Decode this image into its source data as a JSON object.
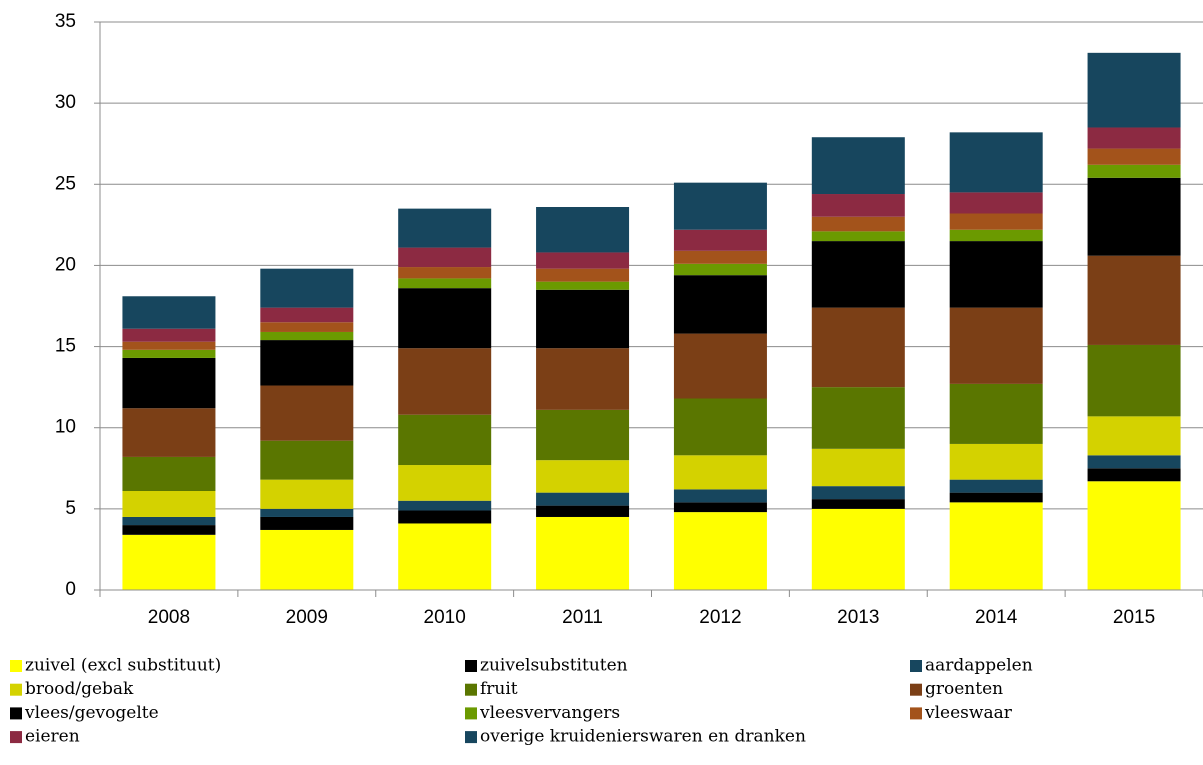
{
  "chart_data": {
    "type": "stacked-bar",
    "categories": [
      "2008",
      "2009",
      "2010",
      "2011",
      "2012",
      "2013",
      "2014",
      "2015"
    ],
    "series": [
      {
        "name": "zuivel (excl substituut)",
        "color": "#ffff00",
        "values": [
          3.4,
          3.7,
          4.1,
          4.5,
          4.8,
          5.0,
          5.4,
          6.7
        ]
      },
      {
        "name": "zuivelsubstituten",
        "color": "#000000",
        "values": [
          0.6,
          0.8,
          0.8,
          0.7,
          0.6,
          0.6,
          0.6,
          0.8
        ]
      },
      {
        "name": "aardappelen",
        "color": "#17465e",
        "values": [
          0.5,
          0.5,
          0.6,
          0.8,
          0.8,
          0.8,
          0.8,
          0.8
        ]
      },
      {
        "name": "brood/gebak",
        "color": "#d4d200",
        "values": [
          1.6,
          1.8,
          2.2,
          2.0,
          2.1,
          2.3,
          2.2,
          2.4
        ]
      },
      {
        "name": "fruit",
        "color": "#5a7600",
        "values": [
          2.1,
          2.4,
          3.1,
          3.1,
          3.5,
          3.8,
          3.7,
          4.4
        ]
      },
      {
        "name": "groenten",
        "color": "#7b3f16",
        "values": [
          3.0,
          3.4,
          4.1,
          3.8,
          4.0,
          4.9,
          4.7,
          5.5
        ]
      },
      {
        "name": "vlees/gevogelte",
        "color": "#000000",
        "values": [
          3.1,
          2.8,
          3.7,
          3.6,
          3.6,
          4.1,
          4.1,
          4.8
        ]
      },
      {
        "name": "vleesvervangers",
        "color": "#6b9a00",
        "values": [
          0.5,
          0.5,
          0.6,
          0.5,
          0.7,
          0.6,
          0.7,
          0.8
        ]
      },
      {
        "name": "vleeswaar",
        "color": "#a3531b",
        "values": [
          0.5,
          0.6,
          0.7,
          0.8,
          0.8,
          0.9,
          1.0,
          1.0
        ]
      },
      {
        "name": "eieren",
        "color": "#8c2a42",
        "values": [
          0.8,
          0.9,
          1.2,
          1.0,
          1.3,
          1.4,
          1.3,
          1.3
        ]
      },
      {
        "name": "overige kruidenierswaren en dranken",
        "color": "#17465e",
        "values": [
          2.0,
          2.4,
          2.4,
          2.8,
          2.9,
          3.5,
          3.7,
          4.6
        ]
      }
    ],
    "ylim": [
      0,
      35
    ],
    "yticks": [
      0,
      5,
      10,
      15,
      20,
      25,
      30,
      35
    ],
    "grid": true
  }
}
